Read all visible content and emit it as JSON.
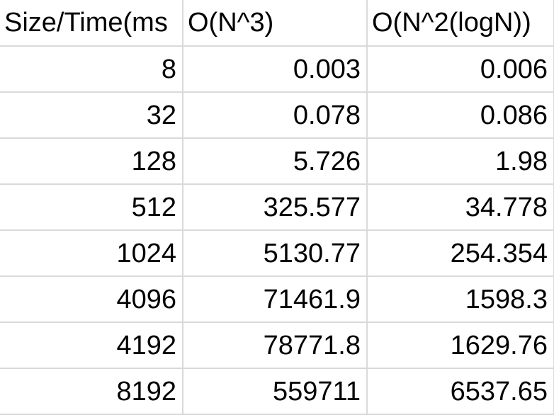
{
  "columns": [
    "Size/Time(ms",
    "O(N^3)",
    "O(N^2(logN))"
  ],
  "rows": [
    [
      "8",
      "0.003",
      "0.006"
    ],
    [
      "32",
      "0.078",
      "0.086"
    ],
    [
      "128",
      "5.726",
      "1.98"
    ],
    [
      "512",
      "325.577",
      "34.778"
    ],
    [
      "1024",
      "5130.77",
      "254.354"
    ],
    [
      "4096",
      "71461.9",
      "1598.3"
    ],
    [
      "4192",
      "78771.8",
      "1629.76"
    ],
    [
      "8192",
      "559711",
      "6537.65"
    ]
  ]
}
